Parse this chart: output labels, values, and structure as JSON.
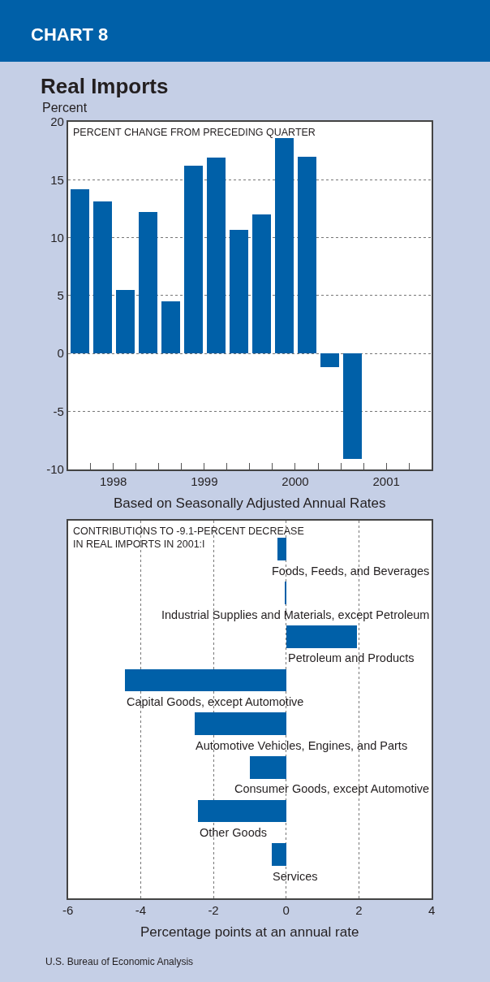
{
  "chart_data": [
    {
      "type": "bar",
      "title": "CHART 8",
      "subtitle": "Real Imports",
      "ylabel": "Percent",
      "xlabel": "Based on Seasonally Adjusted Annual Rates",
      "annotations": [
        "PERCENT CHANGE FROM PRECEDING QUARTER"
      ],
      "x": [
        1998.125,
        1998.375,
        1998.625,
        1998.875,
        1999.125,
        1999.375,
        1999.625,
        1999.875,
        2000.125,
        2000.375,
        2000.625,
        2000.875,
        2001.125
      ],
      "values": [
        14.2,
        13.1,
        5.5,
        12.2,
        4.5,
        16.2,
        16.9,
        10.7,
        12.0,
        18.6,
        17.0,
        -1.2,
        -9.1
      ],
      "color": "#0060a8",
      "xlim": [
        1998,
        2002
      ],
      "xticks": [
        {
          "value": 1998.25,
          "label": null
        },
        {
          "value": 1998.5,
          "label": "1998"
        },
        {
          "value": 1998.75,
          "label": null
        },
        {
          "value": 1999,
          "label": null
        },
        {
          "value": 1999.25,
          "label": null
        },
        {
          "value": 1999.5,
          "label": "1999"
        },
        {
          "value": 1999.75,
          "label": null
        },
        {
          "value": 2000,
          "label": null
        },
        {
          "value": 2000.25,
          "label": null
        },
        {
          "value": 2000.5,
          "label": "2000"
        },
        {
          "value": 2000.75,
          "label": null
        },
        {
          "value": 2001,
          "label": null
        },
        {
          "value": 2001.25,
          "label": null
        },
        {
          "value": 2001.5,
          "label": "2001"
        },
        {
          "value": 2001.75,
          "label": null
        }
      ],
      "ylim": [
        -10,
        20
      ],
      "yticks": [
        -10,
        -5,
        0,
        5,
        10,
        15,
        20
      ],
      "grid": "y"
    },
    {
      "type": "bar",
      "orientation": "horizontal",
      "xlabel": "Percentage points at an annual rate",
      "annotations": [
        "CONTRIBUTIONS TO -9.1-PERCENT DECREASE\nIN REAL IMPORTS IN 2001:I",
        "U.S. Bureau of Economic Analysis"
      ],
      "categories": [
        "Foods, Feeds, and Beverages",
        "Industrial Supplies and Materials, except Petroleum",
        "Petroleum and Products",
        "Capital Goods, except Automotive",
        "Automotive Vehicles, Engines, and Parts",
        "Consumer Goods, except Automotive",
        "Other Goods",
        "Services"
      ],
      "values": [
        -0.26,
        -0.05,
        1.93,
        -4.44,
        -2.53,
        -1.0,
        -2.43,
        -0.41
      ],
      "color": "#0060a8",
      "xlim": [
        -6,
        4
      ],
      "xticks": [
        -6,
        -4,
        -2,
        0,
        2,
        4
      ],
      "grid": "x",
      "tick_labels": "x"
    }
  ]
}
